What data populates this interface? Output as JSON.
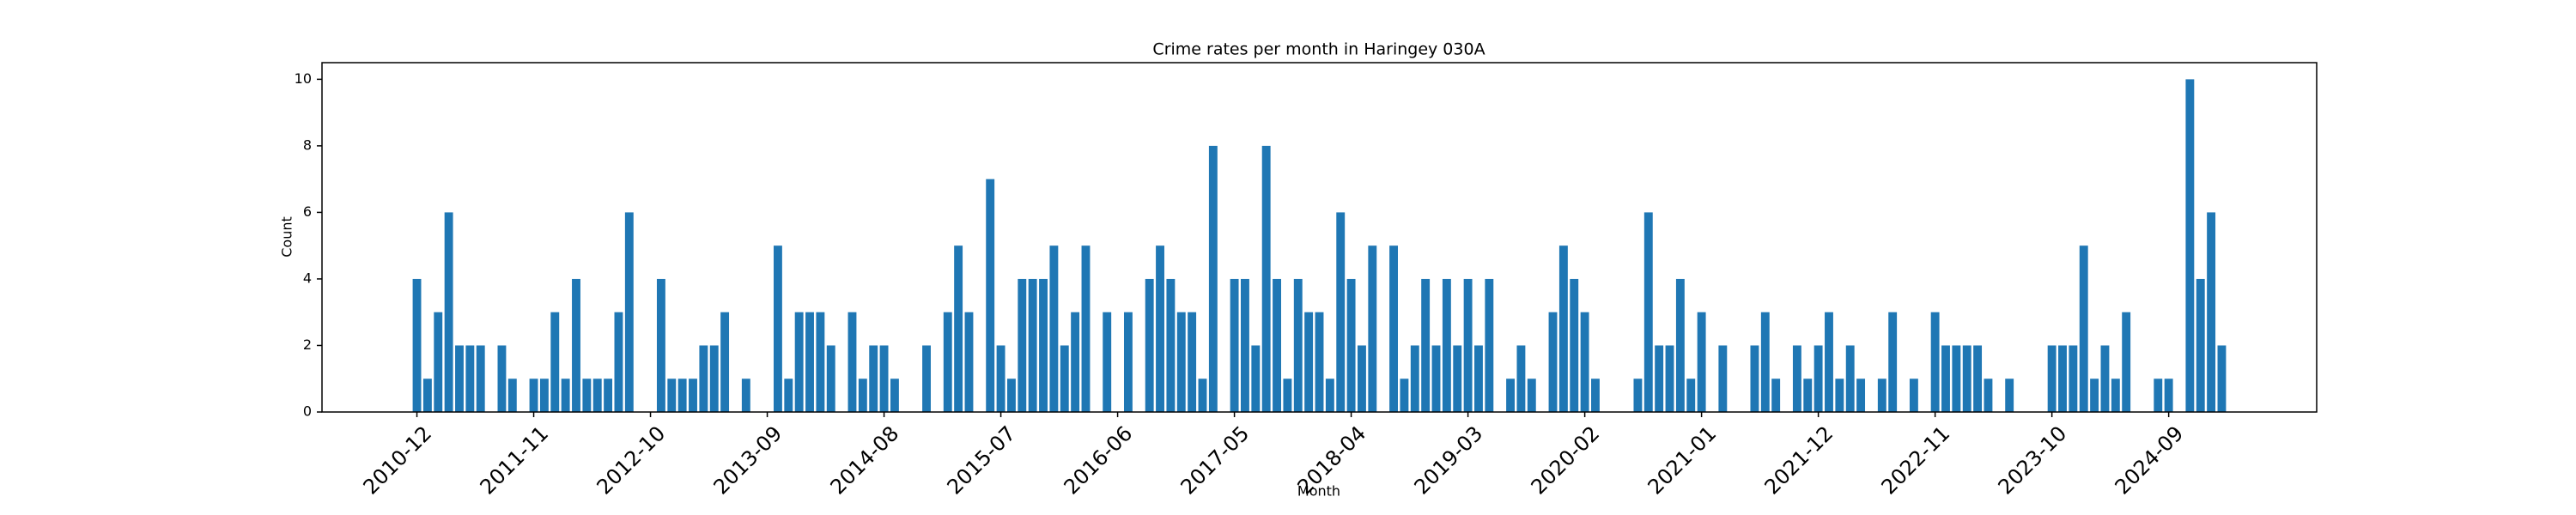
{
  "chart_data": {
    "type": "bar",
    "title": "Crime rates per month in Haringey 030A",
    "xlabel": "Month",
    "ylabel": "Count",
    "categories": [
      "2010-12",
      null,
      null,
      null,
      null,
      null,
      null,
      null,
      null,
      null,
      null,
      "2011-11",
      null,
      null,
      null,
      null,
      null,
      null,
      null,
      null,
      null,
      null,
      "2012-10",
      null,
      null,
      null,
      null,
      null,
      null,
      null,
      null,
      null,
      null,
      "2013-09",
      null,
      null,
      null,
      null,
      null,
      null,
      null,
      null,
      null,
      null,
      "2014-08",
      null,
      null,
      null,
      null,
      null,
      null,
      null,
      null,
      null,
      null,
      "2015-07",
      null,
      null,
      null,
      null,
      null,
      null,
      null,
      null,
      null,
      null,
      "2016-06",
      null,
      null,
      null,
      null,
      null,
      null,
      null,
      null,
      null,
      null,
      "2017-05",
      null,
      null,
      null,
      null,
      null,
      null,
      null,
      null,
      null,
      null,
      "2018-04",
      null,
      null,
      null,
      null,
      null,
      null,
      null,
      null,
      null,
      null,
      "2019-03",
      null,
      null,
      null,
      null,
      null,
      null,
      null,
      null,
      null,
      null,
      "2020-02",
      null,
      null,
      null,
      null,
      null,
      null,
      null,
      null,
      null,
      null,
      "2021-01",
      null,
      null,
      null,
      null,
      null,
      null,
      null,
      null,
      null,
      null,
      "2021-12",
      null,
      null,
      null,
      null,
      null,
      null,
      null,
      null,
      null,
      null,
      "2022-11",
      null,
      null,
      null,
      null,
      null,
      null,
      null,
      null,
      null,
      null,
      "2023-10",
      null,
      null,
      null,
      null,
      null,
      null,
      null,
      null,
      null,
      null,
      "2024-09",
      null,
      null,
      null,
      null,
      null
    ],
    "values": [
      4,
      1,
      3,
      6,
      2,
      2,
      2,
      0,
      2,
      1,
      0,
      1,
      1,
      3,
      1,
      4,
      1,
      1,
      1,
      3,
      6,
      0,
      0,
      4,
      1,
      1,
      1,
      2,
      2,
      3,
      0,
      1,
      0,
      0,
      5,
      1,
      3,
      3,
      3,
      2,
      0,
      3,
      1,
      2,
      2,
      1,
      0,
      0,
      2,
      0,
      3,
      5,
      3,
      0,
      7,
      2,
      1,
      4,
      4,
      4,
      5,
      2,
      3,
      5,
      0,
      3,
      0,
      3,
      0,
      4,
      5,
      4,
      3,
      3,
      1,
      8,
      0,
      4,
      4,
      2,
      8,
      4,
      1,
      4,
      3,
      3,
      1,
      6,
      4,
      2,
      5,
      0,
      5,
      1,
      2,
      4,
      2,
      4,
      2,
      4,
      2,
      4,
      0,
      1,
      2,
      1,
      0,
      3,
      5,
      4,
      3,
      1,
      0,
      0,
      0,
      1,
      6,
      2,
      2,
      4,
      1,
      3,
      0,
      2,
      0,
      0,
      2,
      3,
      1,
      0,
      2,
      1,
      2,
      3,
      1,
      2,
      1,
      0,
      1,
      3,
      0,
      1,
      0,
      3,
      2,
      2,
      2,
      2,
      1,
      0,
      1,
      0,
      0,
      0,
      2,
      2,
      2,
      5,
      1,
      2,
      1,
      3,
      0,
      0,
      1,
      1,
      0,
      10,
      4,
      6,
      2
    ],
    "color": "#1f77b4",
    "ylim": [
      0,
      10.5
    ],
    "yticks": [
      0,
      2,
      4,
      6,
      8,
      10
    ],
    "grid": false
  }
}
